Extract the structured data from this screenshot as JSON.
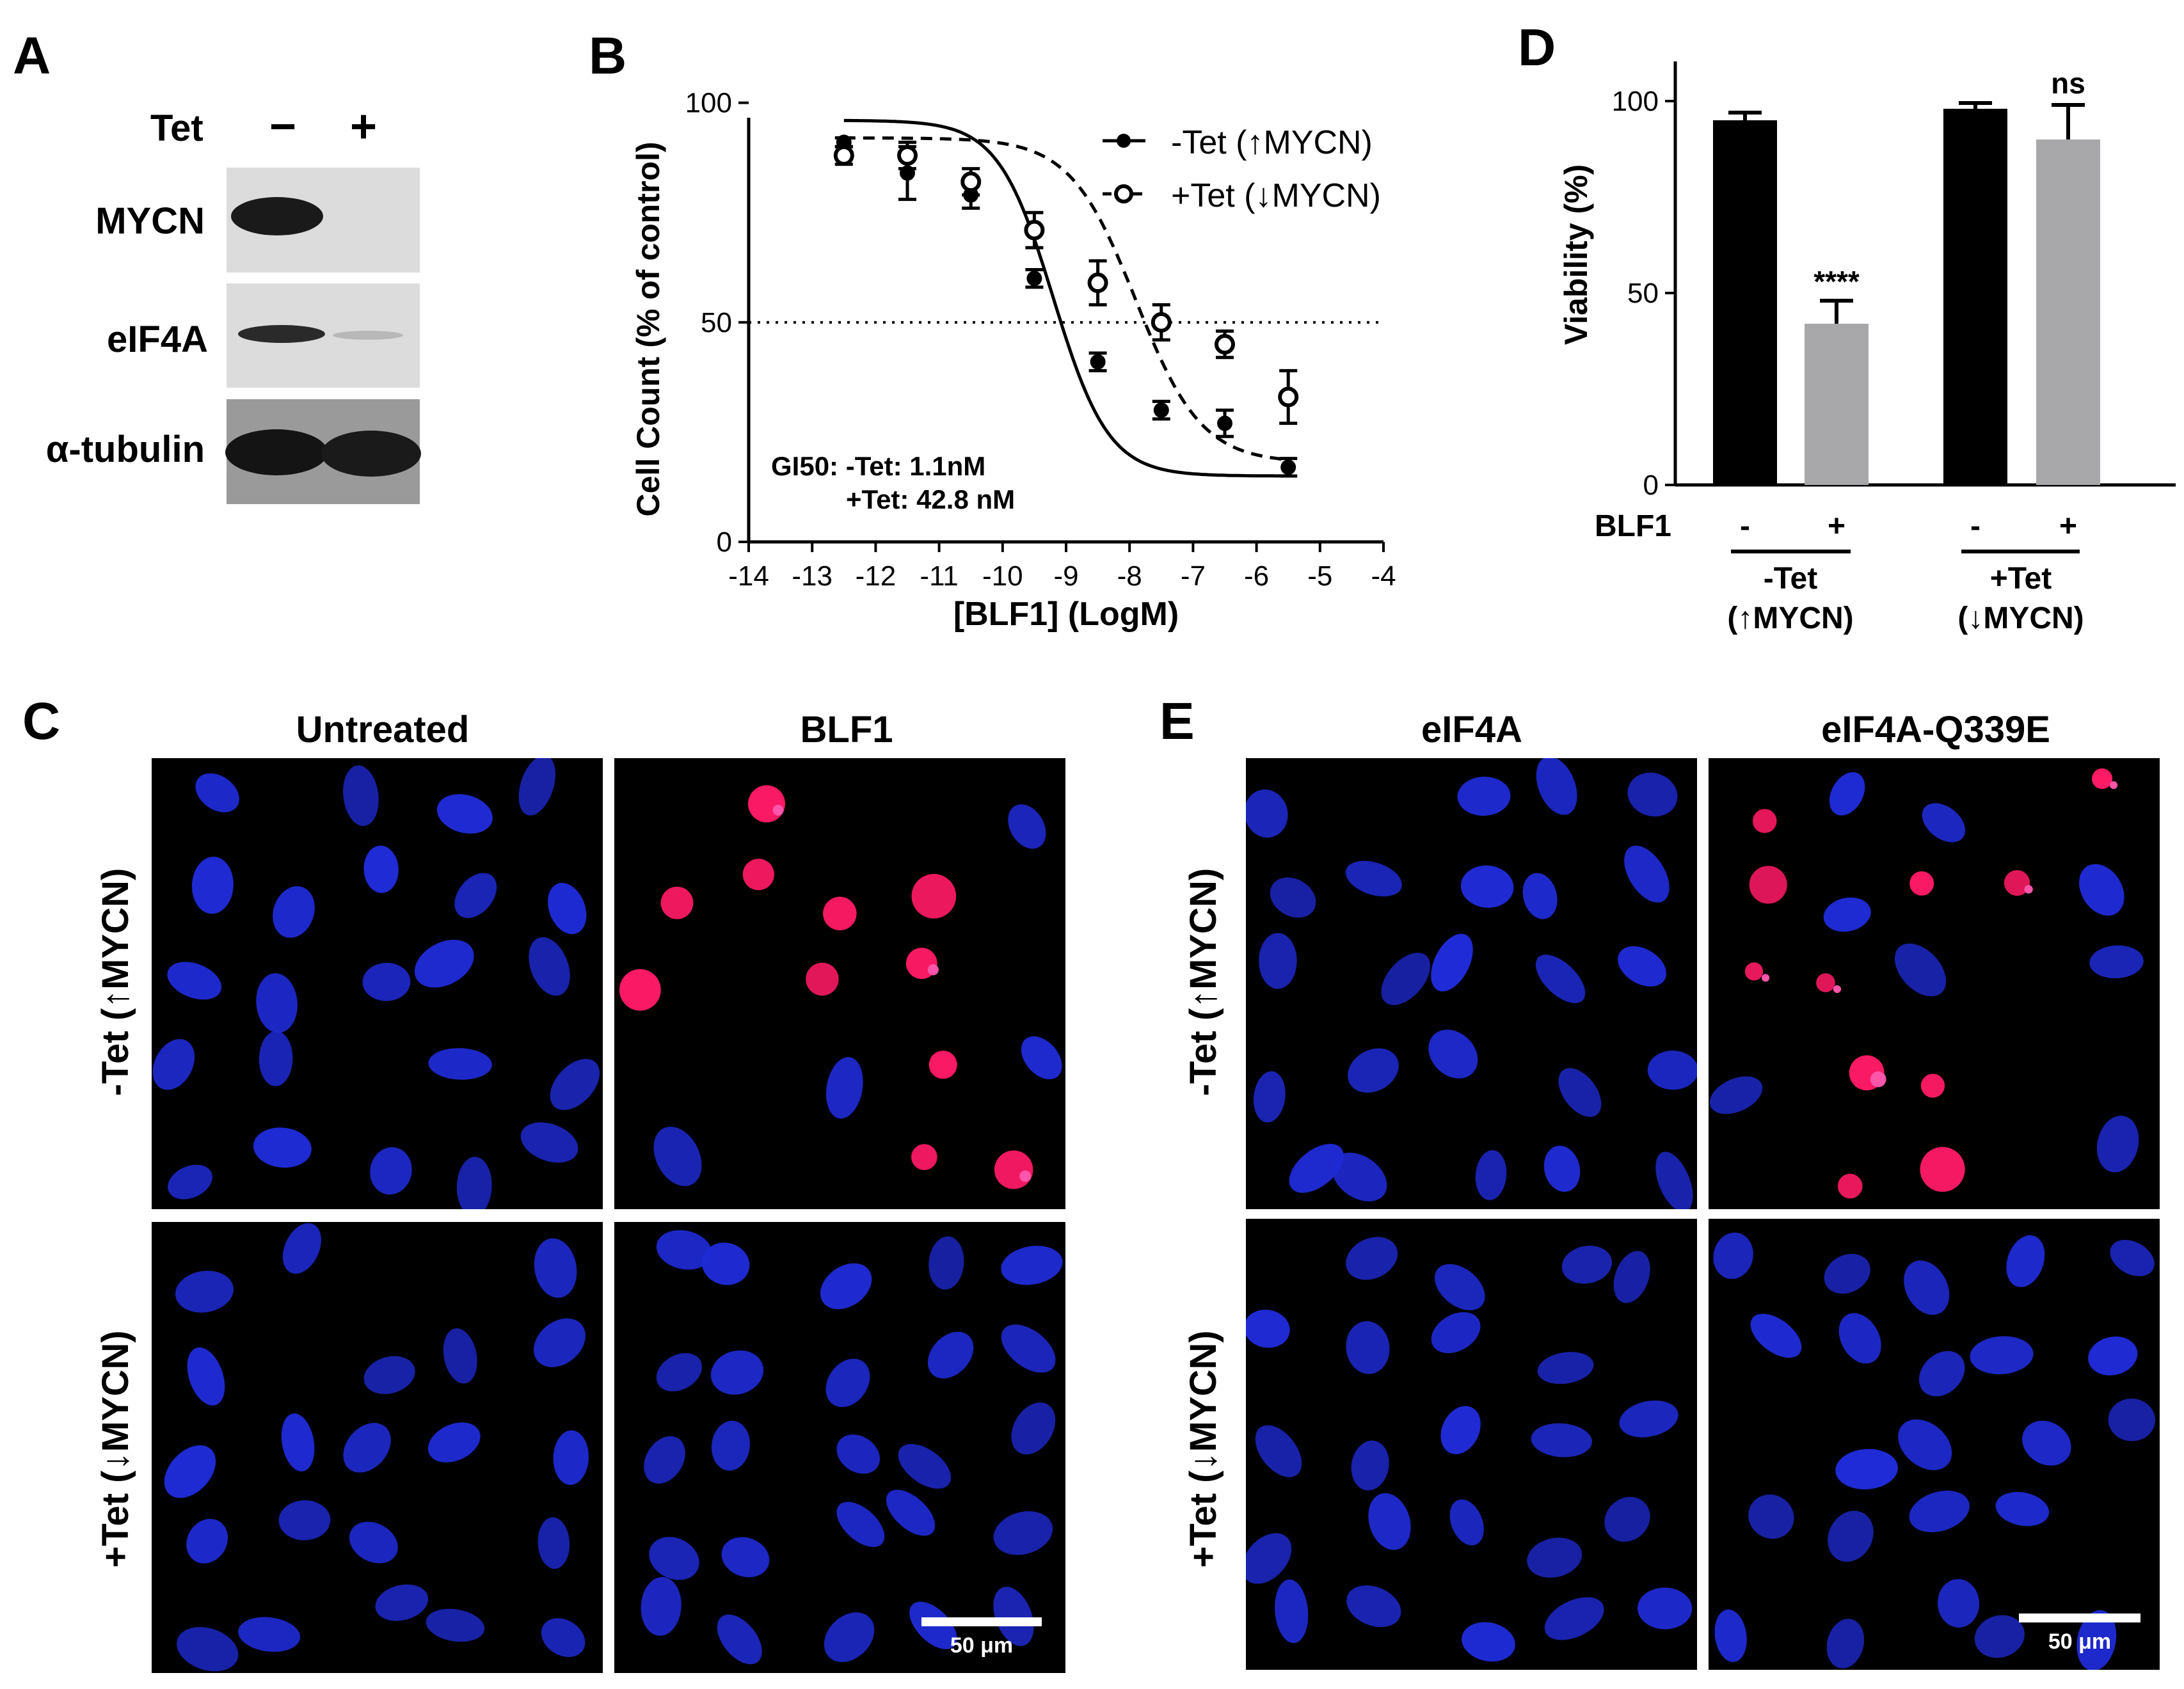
{
  "panel_a": {
    "letter": "A",
    "tet_label": "Tet",
    "lane_labels": [
      "−",
      "+"
    ],
    "rows": [
      "MYCN",
      "eIF4A",
      "α-tubulin"
    ]
  },
  "panel_b": {
    "letter": "B",
    "legend": [
      "-Tet (↑MYCN)",
      "+Tet (↓MYCN)"
    ],
    "gi50_line1": "GI50: -Tet: 1.1nM",
    "gi50_line2": "+Tet: 42.8 nM"
  },
  "panel_c": {
    "letter": "C",
    "col_titles": [
      "Untreated",
      "BLF1"
    ],
    "row_labels": [
      "-Tet (↑MYCN)",
      "+Tet (↓MYCN)"
    ],
    "scale_bar": "50 μm"
  },
  "panel_d": {
    "letter": "D",
    "blf1_label": "BLF1",
    "group_labels_line1": [
      "-Tet",
      "+Tet"
    ],
    "group_labels_line2": [
      "(↑MYCN)",
      "(↓MYCN)"
    ],
    "bar_signs": [
      "-",
      "+",
      "-",
      "+"
    ],
    "annotations": [
      "****",
      "ns"
    ]
  },
  "panel_e": {
    "letter": "E",
    "col_titles": [
      "eIF4A",
      "eIF4A-Q339E"
    ],
    "row_labels": [
      "-Tet (↑MYCN)",
      "+Tet (↓MYCN)"
    ],
    "scale_bar": "50 μm"
  },
  "colors": {
    "nucleus": "#1f2bd6",
    "dead_cell": "#ff1a66",
    "bar_black": "#000000",
    "bar_grey": "#a8a8ab"
  },
  "chart_data": [
    {
      "type": "scatter",
      "panel": "B",
      "xlabel": "[BLF1] (LogM)",
      "ylabel": "Cell Count (% of control)",
      "xlim": [
        -14,
        -4
      ],
      "ylim": [
        0,
        110
      ],
      "xticks": [
        -14,
        -13,
        -12,
        -11,
        -10,
        -9,
        -8,
        -7,
        -6,
        -5,
        -4
      ],
      "yticks": [
        0,
        50,
        100
      ],
      "reference_line_y": 50,
      "series": [
        {
          "name": "-Tet (↑MYCN)",
          "marker": "filled-circle",
          "line": "solid",
          "x": [
            -12.5,
            -11.5,
            -10.5,
            -9.5,
            -8.5,
            -7.5,
            -6.5,
            -5.5
          ],
          "y": [
            91,
            84,
            79,
            60,
            41,
            30,
            27,
            17
          ],
          "err": [
            1,
            6,
            3,
            2,
            2,
            2,
            3,
            2
          ],
          "fit": {
            "top": 96,
            "bottom": 15,
            "log_ic50": -9.2,
            "hill": 0.5
          }
        },
        {
          "name": "+Tet (↓MYCN)",
          "marker": "open-circle",
          "line": "dashed",
          "x": [
            -12.5,
            -11.5,
            -10.5,
            -9.5,
            -8.5,
            -7.5,
            -6.5,
            -5.5
          ],
          "y": [
            88,
            88,
            82,
            71,
            59,
            50,
            45,
            33
          ],
          "err": [
            2,
            3,
            3,
            4,
            5,
            4,
            3,
            6
          ],
          "fit": {
            "top": 92,
            "bottom": 18,
            "log_ic50": -7.9,
            "hill": 0.42
          }
        }
      ]
    },
    {
      "type": "bar",
      "panel": "D",
      "ylabel": "Viability (%)",
      "ylim": [
        0,
        100
      ],
      "yticks": [
        0,
        50,
        100
      ],
      "categories": [
        "-Tet -BLF1",
        "-Tet +BLF1",
        "+Tet -BLF1",
        "+Tet +BLF1"
      ],
      "values": [
        95,
        42,
        98,
        90
      ],
      "errors": [
        2,
        6,
        1.5,
        9
      ]
    }
  ]
}
